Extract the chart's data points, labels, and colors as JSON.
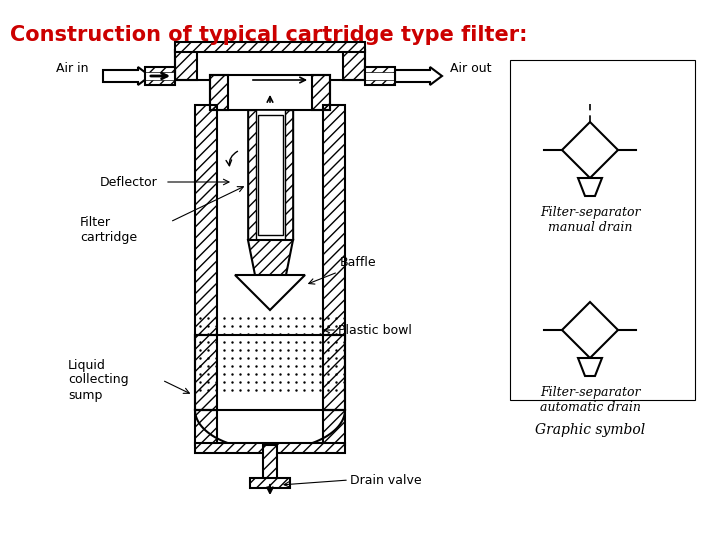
{
  "title": "Construction of typical cartridge type filter:",
  "title_color": "#cc0000",
  "title_fontsize": 15,
  "title_fontstyle": "normal",
  "bg_color": "#ffffff",
  "labels": {
    "air_in": "Air in",
    "air_out": "Air out",
    "deflector": "Deflector",
    "filter_cartridge": "Filter\ncartridge",
    "baffle": "Baffle",
    "plastic_bowl": "Plastic bowl",
    "liquid_sump": "Liquid\ncollecting\nsump",
    "drain_valve": "Drain valve"
  },
  "right_labels": {
    "manual_drain": "Filter-separator\nmanual drain",
    "auto_drain": "Filter-separator\nautomatic drain",
    "graphic_symbol": "Graphic symbol"
  },
  "figsize": [
    7.2,
    5.4
  ],
  "dpi": 100
}
